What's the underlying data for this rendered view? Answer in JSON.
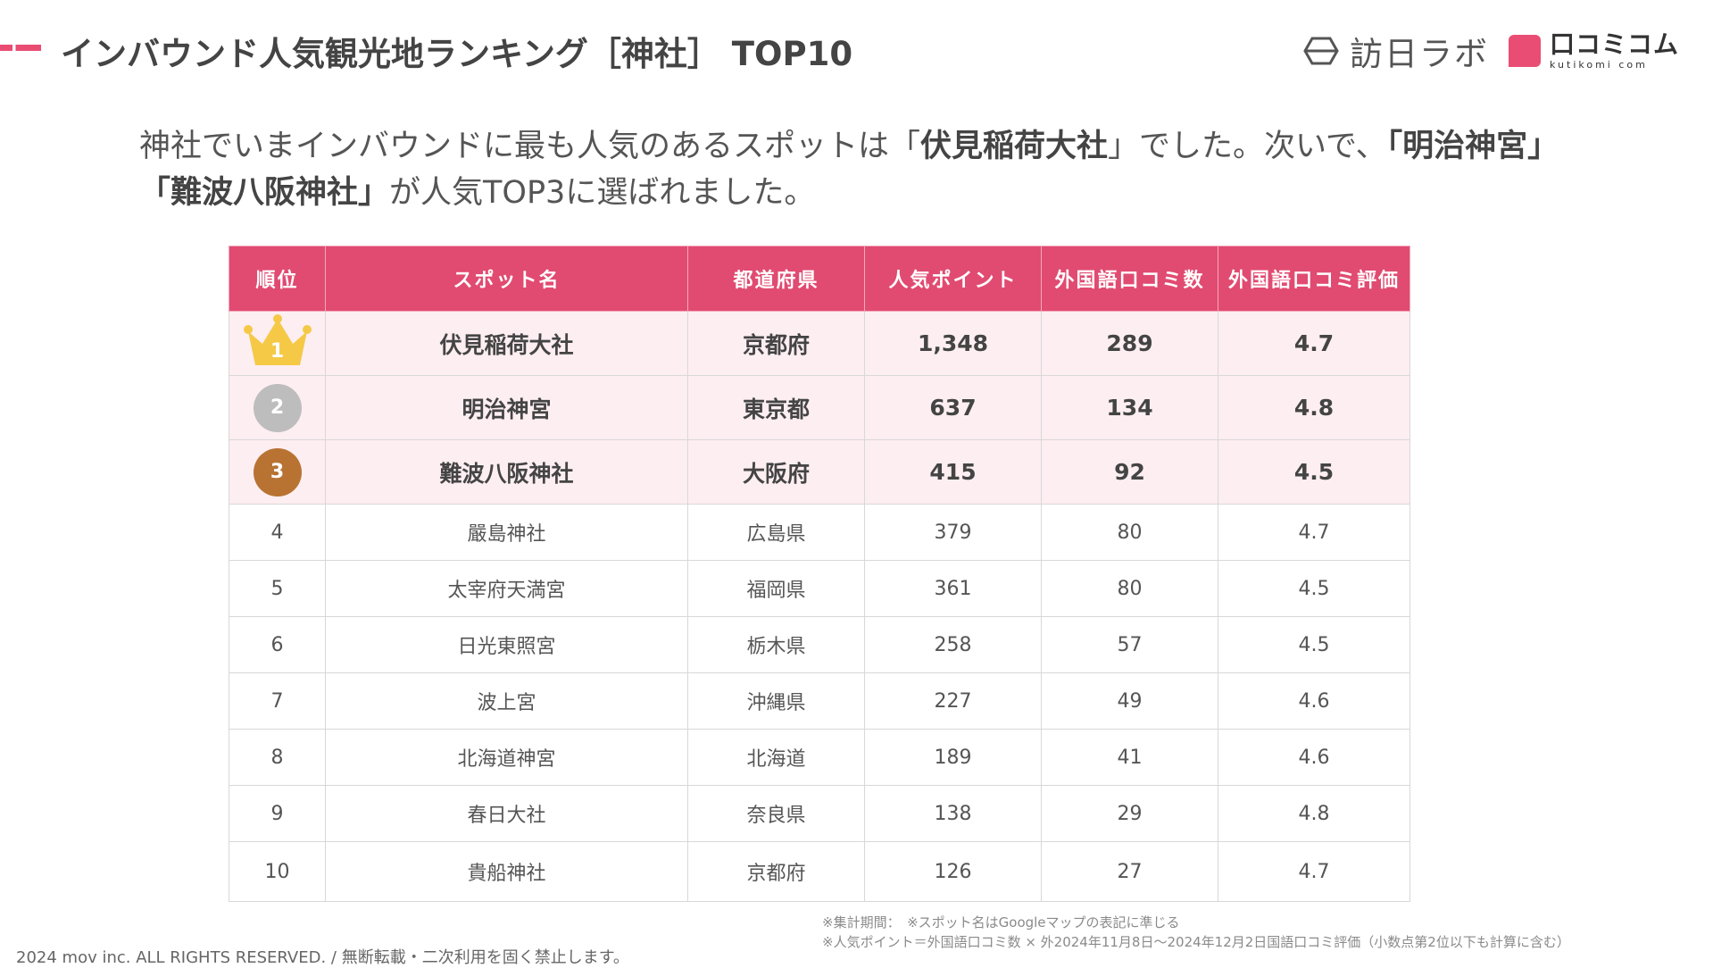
{
  "header": {
    "title": "インバウンド人気観光地ランキング［神社］ TOP10",
    "logo_houjin": "訪日ラボ",
    "logo_kuchikomi": "口コミコム",
    "logo_kuchikomi_sub": "kutikomi com"
  },
  "intro": {
    "p1": "神社でいまインバウンドに最も人気のあるスポットは「",
    "b1": "伏見稲荷大社",
    "p2": "」でした。次いで、",
    "b2": "「明治神宮」「難波八阪神社」",
    "p3": "が人気TOP3に選ばれました。"
  },
  "table": {
    "headers": [
      "順位",
      "スポット名",
      "都道府県",
      "人気ポイント",
      "外国語口コミ数",
      "外国語口コミ評価"
    ],
    "rows": [
      {
        "rank": "1",
        "name": "伏見稲荷大社",
        "pref": "京都府",
        "points": "1,348",
        "count": "289",
        "rating": "4.7"
      },
      {
        "rank": "2",
        "name": "明治神宮",
        "pref": "東京都",
        "points": "637",
        "count": "134",
        "rating": "4.8"
      },
      {
        "rank": "3",
        "name": "難波八阪神社",
        "pref": "大阪府",
        "points": "415",
        "count": "92",
        "rating": "4.5"
      },
      {
        "rank": "4",
        "name": "嚴島神社",
        "pref": "広島県",
        "points": "379",
        "count": "80",
        "rating": "4.7"
      },
      {
        "rank": "5",
        "name": "太宰府天満宮",
        "pref": "福岡県",
        "points": "361",
        "count": "80",
        "rating": "4.5"
      },
      {
        "rank": "6",
        "name": "日光東照宮",
        "pref": "栃木県",
        "points": "258",
        "count": "57",
        "rating": "4.5"
      },
      {
        "rank": "7",
        "name": "波上宮",
        "pref": "沖縄県",
        "points": "227",
        "count": "49",
        "rating": "4.6"
      },
      {
        "rank": "8",
        "name": "北海道神宮",
        "pref": "北海道",
        "points": "189",
        "count": "41",
        "rating": "4.6"
      },
      {
        "rank": "9",
        "name": "春日大社",
        "pref": "奈良県",
        "points": "138",
        "count": "29",
        "rating": "4.8"
      },
      {
        "rank": "10",
        "name": "貴船神社",
        "pref": "京都府",
        "points": "126",
        "count": "27",
        "rating": "4.7"
      }
    ]
  },
  "notes": {
    "line1": "※集計期間：　※スポット名はGoogleマップの表記に準じる",
    "line2": "※人気ポイント＝外国語口コミ数 × 外2024年11月8日〜2024年12月2日国語口コミ評価（小数点第2位以下も計算に含む）"
  },
  "footer": {
    "copyright": "2024 mov inc. ALL RIGHTS RESERVED. / 無断転載・二次利用を固く禁止します。"
  },
  "colors": {
    "accent": "#e14b71",
    "top_row_bg": "#fdeef2",
    "gold": "#f5c946",
    "silver": "#bdbdbd",
    "bronze": "#b87333"
  }
}
